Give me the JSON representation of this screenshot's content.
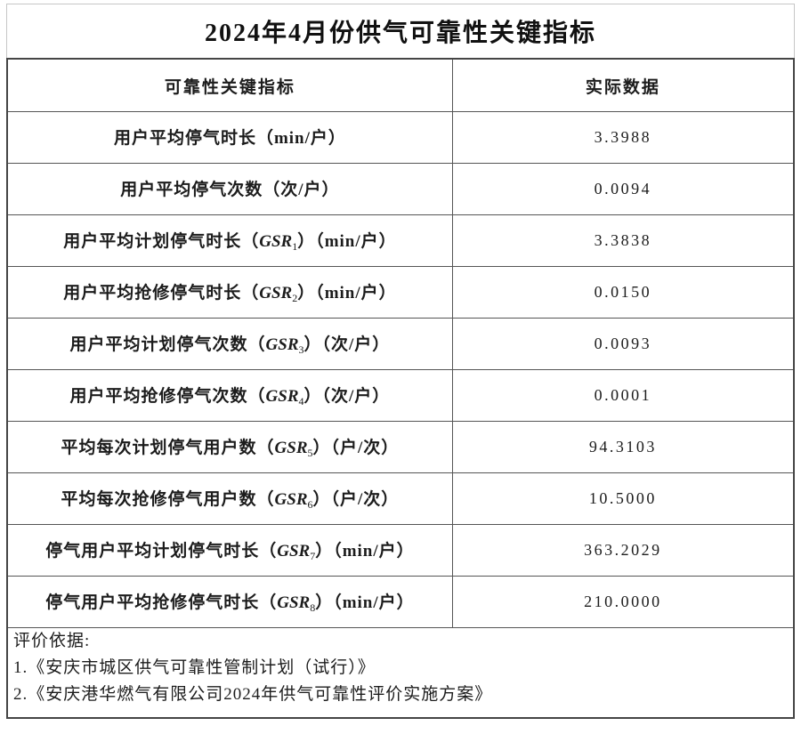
{
  "title": "2024年4月份供气可靠性关键指标",
  "table": {
    "headers": {
      "indicator": "可靠性关键指标",
      "value": "实际数据"
    },
    "rows": [
      {
        "pre": "用户平均停气时长（min/户）",
        "value": "3.3988"
      },
      {
        "pre": "用户平均停气次数（次/户）",
        "value": "0.0094"
      },
      {
        "pre": "用户平均计划停气时长（",
        "gsr": "GSR",
        "sub": "1",
        "post": "）（min/户）",
        "value": "3.3838"
      },
      {
        "pre": "用户平均抢修停气时长（",
        "gsr": "GSR",
        "sub": "2",
        "post": "）（min/户）",
        "value": "0.0150"
      },
      {
        "pre": "用户平均计划停气次数（",
        "gsr": "GSR",
        "sub": "3",
        "post": "）（次/户）",
        "value": "0.0093"
      },
      {
        "pre": "用户平均抢修停气次数（",
        "gsr": "GSR",
        "sub": "4",
        "post": "）（次/户）",
        "value": "0.0001"
      },
      {
        "pre": "平均每次计划停气用户数（",
        "gsr": "GSR",
        "sub": "5",
        "post": "）（户/次）",
        "value": "94.3103"
      },
      {
        "pre": "平均每次抢修停气用户数（",
        "gsr": "GSR",
        "sub": "6",
        "post": "）（户/次）",
        "value": "10.5000"
      },
      {
        "pre": "停气用户平均计划停气时长（",
        "gsr": "GSR",
        "sub": "7",
        "post": "）（min/户）",
        "value": "363.2029"
      },
      {
        "pre": "停气用户平均抢修停气时长（",
        "gsr": "GSR",
        "sub": "8",
        "post": "）（min/户）",
        "value": "210.0000"
      }
    ],
    "footer": {
      "heading": "评价依据:",
      "items": [
        "1.《安庆市城区供气可靠性管制计划（试行）》",
        "2.《安庆港华燃气有限公司2024年供气可靠性评价实施方案》"
      ]
    }
  }
}
